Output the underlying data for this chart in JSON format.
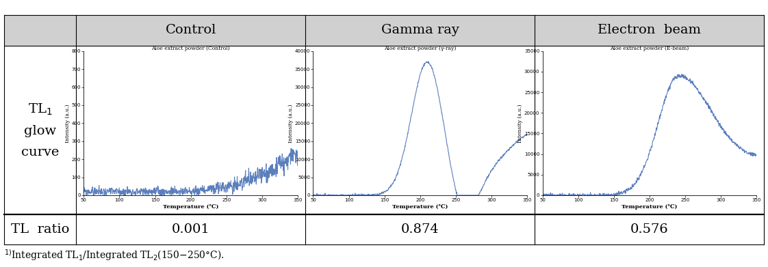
{
  "table_bg_header": "#d3d3d3",
  "table_bg_cell": "#ffffff",
  "table_border_color": "#000000",
  "col_headers": [
    "Control",
    "Gamma ray",
    "Electron  beam"
  ],
  "tl_ratio_label": "TL  ratio",
  "tl_ratio_values": [
    "0.001",
    "0.874",
    "0.576"
  ],
  "plot_titles": [
    "Aloe extract powder (Control)",
    "Aloe extract powder (γ-ray)",
    "Aloe extract powder (E-beam)"
  ],
  "ylabel": "Intensity (a.u.)",
  "xlabel": "Temperature (℃)",
  "line_color": "#5b7fbd",
  "line_width": 0.8,
  "plot_title_fontsize": 5.5,
  "axis_label_fontsize": 5.5,
  "tick_fontsize": 5.0,
  "header_fontsize": 14,
  "ratio_fontsize": 14,
  "row_header_fontsize": 14,
  "footnote_fontsize": 10
}
